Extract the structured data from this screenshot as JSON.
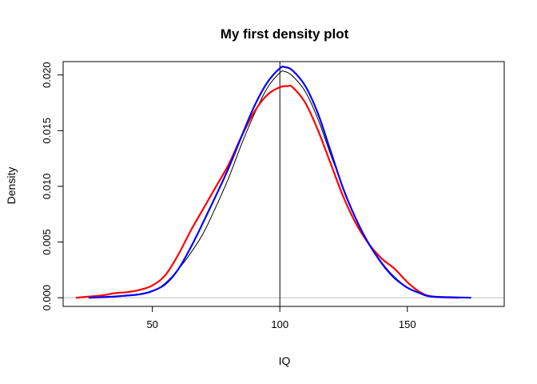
{
  "chart_data": {
    "type": "line",
    "title": "My first density plot",
    "xlabel": "IQ",
    "ylabel": "Density",
    "xlim": [
      15,
      188
    ],
    "ylim": [
      -0.00078,
      0.0212
    ],
    "x_ticks": [
      50,
      100,
      150
    ],
    "x_tick_labels": [
      "50",
      "100",
      "150"
    ],
    "y_ticks": [
      0.0,
      0.005,
      0.01,
      0.015,
      0.02
    ],
    "y_tick_labels": [
      "0.000",
      "0.005",
      "0.010",
      "0.015",
      "0.020"
    ],
    "grid": false,
    "legend": "none",
    "reference_lines": {
      "vertical_x": 100,
      "horizontal_y": 0,
      "horizontal_color": "#bebebe",
      "vertical_color": "#000000"
    },
    "series": [
      {
        "color": "#000000",
        "stroke": "thin",
        "x": [
          25,
          40,
          50,
          55,
          60,
          65,
          70,
          75,
          80,
          85,
          90,
          95,
          100,
          102,
          105,
          110,
          115,
          120,
          125,
          130,
          135,
          140,
          145,
          150,
          155,
          160,
          170
        ],
        "y": [
          0.0,
          0.0002,
          0.0006,
          0.0013,
          0.0025,
          0.004,
          0.0058,
          0.0082,
          0.0108,
          0.0138,
          0.0165,
          0.0188,
          0.0202,
          0.0203,
          0.0199,
          0.0185,
          0.016,
          0.0128,
          0.0098,
          0.007,
          0.0048,
          0.003,
          0.0017,
          0.0009,
          0.0004,
          0.0001,
          0.0
        ]
      },
      {
        "color": "#ff0000",
        "stroke": "thick",
        "x": [
          20,
          30,
          35,
          40,
          45,
          50,
          55,
          60,
          65,
          70,
          75,
          80,
          85,
          90,
          95,
          100,
          103,
          105,
          110,
          115,
          120,
          125,
          130,
          135,
          140,
          145,
          150,
          155,
          160,
          170
        ],
        "y": [
          0.0,
          0.0002,
          0.0004,
          0.0005,
          0.0007,
          0.0011,
          0.002,
          0.0038,
          0.006,
          0.008,
          0.01,
          0.012,
          0.0145,
          0.0167,
          0.0182,
          0.0189,
          0.019,
          0.0189,
          0.0175,
          0.015,
          0.012,
          0.009,
          0.0066,
          0.0048,
          0.0035,
          0.0026,
          0.0014,
          0.0005,
          0.0001,
          0.0
        ]
      },
      {
        "color": "#0000ff",
        "stroke": "thick",
        "x": [
          25,
          35,
          40,
          45,
          50,
          55,
          60,
          65,
          70,
          75,
          80,
          85,
          90,
          95,
          100,
          102,
          105,
          110,
          115,
          120,
          125,
          130,
          135,
          140,
          145,
          150,
          155,
          160,
          175
        ],
        "y": [
          0.0,
          0.0001,
          0.0002,
          0.0003,
          0.0006,
          0.0012,
          0.0025,
          0.0045,
          0.0068,
          0.0092,
          0.0117,
          0.0145,
          0.0172,
          0.0193,
          0.0206,
          0.0207,
          0.0204,
          0.019,
          0.0165,
          0.0131,
          0.0097,
          0.007,
          0.0048,
          0.0031,
          0.0018,
          0.0009,
          0.0004,
          0.0001,
          0.0
        ]
      }
    ]
  }
}
